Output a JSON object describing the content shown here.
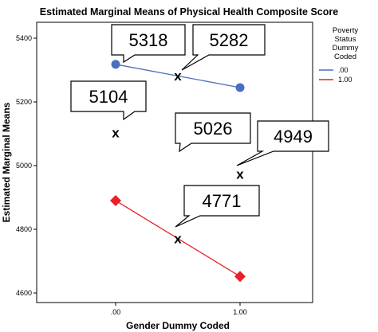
{
  "chart_data": {
    "type": "line",
    "title": "Estimated Marginal Means of Physical Health Composite Score",
    "xlabel": "Gender Dummy Coded",
    "ylabel": "Estimated Marginal Means",
    "categories": [
      ".00",
      "1.00"
    ],
    "y_ticks": [
      4600,
      4800,
      5000,
      5200,
      5400
    ],
    "y_tick_labels": [
      "4600",
      "4800",
      "5000",
      "5200",
      "5400"
    ],
    "ylim": [
      4570,
      5450
    ],
    "legend": {
      "title": [
        "Poverty",
        "Status",
        "Dummy",
        "Coded"
      ],
      "placement": "right"
    },
    "series": [
      {
        "name": ".00",
        "color": "#4a6fbf",
        "marker": "circle",
        "values": [
          5318,
          5245
        ]
      },
      {
        "name": "1.00",
        "color": "#e8202a",
        "marker": "diamond",
        "values": [
          4890,
          4652
        ]
      }
    ],
    "annotations": [
      {
        "text": "5318",
        "x": 0.0,
        "y": 5318,
        "has_cross": false
      },
      {
        "text": "5282",
        "x": 0.5,
        "y": 5282,
        "has_cross": true
      },
      {
        "text": "5104",
        "x": 0.0,
        "y": 5104,
        "has_cross": true
      },
      {
        "text": "5026",
        "x": 0.5,
        "y": 5026,
        "has_cross": false
      },
      {
        "text": "4949",
        "x": 1.0,
        "y": 4974,
        "has_cross": true
      },
      {
        "text": "4771",
        "x": 0.5,
        "y": 4771,
        "has_cross": true
      }
    ],
    "grid": false
  }
}
